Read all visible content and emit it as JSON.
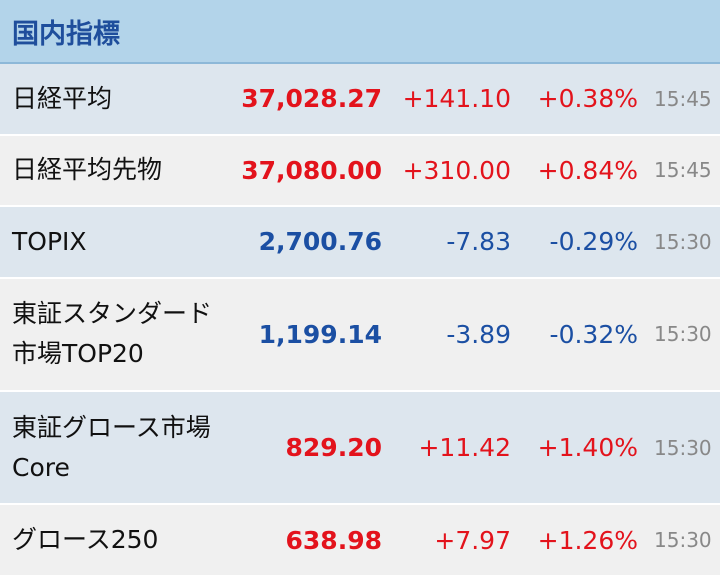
{
  "header": {
    "title": "国内指標"
  },
  "table": {
    "rows": [
      {
        "name": [
          "日経平均"
        ],
        "value": "37,028.27",
        "change": "+141.10",
        "percent": "+0.38%",
        "time": "15:45"
      },
      {
        "name": [
          "日経平均先物"
        ],
        "value": "37,080.00",
        "change": "+310.00",
        "percent": "+0.84%",
        "time": "15:45"
      },
      {
        "name": [
          "TOPIX"
        ],
        "value": "2,700.76",
        "change": "-7.83",
        "percent": "-0.29%",
        "time": "15:30"
      },
      {
        "name": [
          "東証スタンダード",
          "市場TOP20"
        ],
        "value": "1,199.14",
        "change": "-3.89",
        "percent": "-0.32%",
        "time": "15:30"
      },
      {
        "name": [
          "東証グロース市場",
          "Core"
        ],
        "value": "829.20",
        "change": "+11.42",
        "percent": "+1.40%",
        "time": "15:30"
      },
      {
        "name": [
          "グロース250"
        ],
        "value": "638.98",
        "change": "+7.97",
        "percent": "+1.26%",
        "time": "15:30"
      }
    ]
  }
}
